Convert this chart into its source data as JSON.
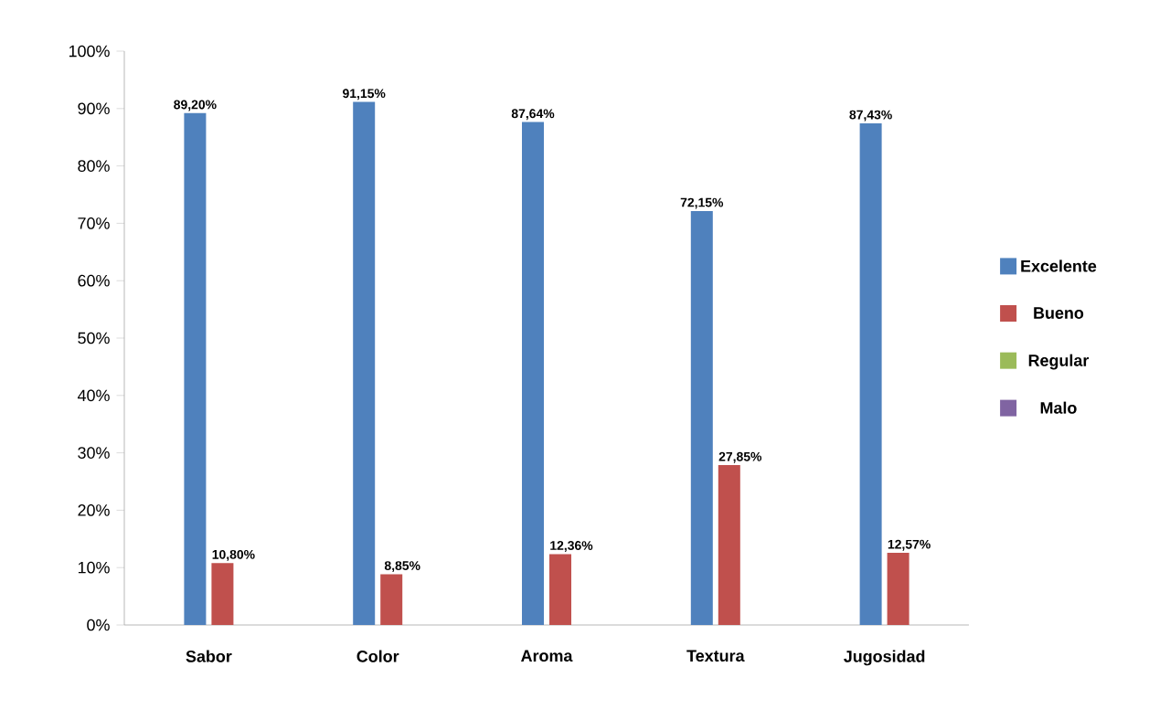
{
  "chart_data": {
    "type": "bar",
    "categories": [
      "Sabor",
      "Color",
      "Aroma",
      "Textura",
      "Jugosidad"
    ],
    "series": [
      {
        "name": "Excelente",
        "color": "#4f81bd",
        "values": [
          89.2,
          91.15,
          87.64,
          72.15,
          87.43
        ],
        "value_labels": [
          "89,20%",
          "91,15%",
          "87,64%",
          "72,15%",
          "87,43%"
        ]
      },
      {
        "name": "Bueno",
        "color": "#c0504d",
        "values": [
          10.8,
          8.85,
          12.36,
          27.85,
          12.57
        ],
        "value_labels": [
          "10,80%",
          "8,85%",
          "12,36%",
          "27,85%",
          "12,57%"
        ]
      },
      {
        "name": "Regular",
        "color": "#9bbb59",
        "values": [
          null,
          null,
          null,
          null,
          null
        ]
      },
      {
        "name": "Malo",
        "color": "#8064a2",
        "values": [
          null,
          null,
          null,
          null,
          null
        ]
      }
    ],
    "ylim": [
      0,
      100
    ],
    "yticks": [
      {
        "value": 0,
        "label": "0%"
      },
      {
        "value": 10,
        "label": "10%"
      },
      {
        "value": 20,
        "label": "20%"
      },
      {
        "value": 30,
        "label": "30%"
      },
      {
        "value": 40,
        "label": "40%"
      },
      {
        "value": 50,
        "label": "50%"
      },
      {
        "value": 60,
        "label": "60%"
      },
      {
        "value": 70,
        "label": "70%"
      },
      {
        "value": 80,
        "label": "80%"
      },
      {
        "value": 90,
        "label": "90%"
      },
      {
        "value": 100,
        "label": "100%"
      }
    ],
    "legend": "right"
  }
}
